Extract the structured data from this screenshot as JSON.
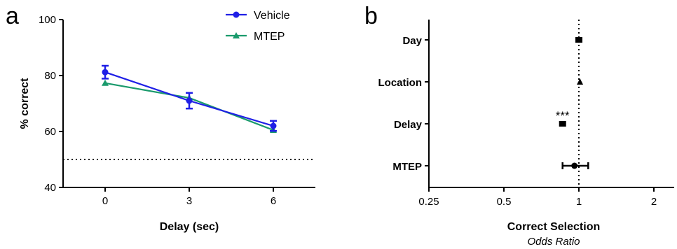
{
  "chart_data": [
    {
      "type": "line",
      "panel": "a",
      "xlabel": "Delay (sec)",
      "ylabel": "% correct",
      "x": [
        0,
        3,
        6
      ],
      "xticks": [
        "0",
        "3",
        "6"
      ],
      "ylim": [
        40,
        100
      ],
      "yticks": [
        "40",
        "60",
        "80",
        "100"
      ],
      "reference_line": 50,
      "series": [
        {
          "name": "Vehicle",
          "color": "#1f1fe6",
          "marker": "circle",
          "values": [
            81.2,
            71.0,
            62.0
          ],
          "errors": [
            2.3,
            2.8,
            1.8
          ]
        },
        {
          "name": "MTEP",
          "color": "#1a9a6c",
          "marker": "triangle",
          "values": [
            77.3,
            72.0,
            60.5
          ],
          "errors": [
            0,
            0,
            0
          ]
        }
      ],
      "legend": "top-right"
    },
    {
      "type": "scatter",
      "panel": "b",
      "xlabel": "Correct Selection",
      "xsublabel": "Odds  Ratio",
      "xscale": "log2",
      "xlim": [
        0.25,
        2.5
      ],
      "xticks": [
        "0.25",
        "0.5",
        "1",
        "2"
      ],
      "xtick_values": [
        0.25,
        0.5,
        1,
        2
      ],
      "reference_line": 1,
      "categories": [
        "Day",
        "Location",
        "Delay",
        "MTEP"
      ],
      "points": [
        {
          "label": "Day",
          "value": 1.0,
          "ci": [
            1.0,
            1.0
          ],
          "marker": "square",
          "annotation": ""
        },
        {
          "label": "Location",
          "value": 1.01,
          "ci": [
            1.01,
            1.01
          ],
          "marker": "triangle",
          "annotation": ""
        },
        {
          "label": "Delay",
          "value": 0.86,
          "ci": [
            0.86,
            0.86
          ],
          "marker": "square",
          "annotation": "***"
        },
        {
          "label": "MTEP",
          "value": 0.96,
          "ci": [
            0.86,
            1.09
          ],
          "marker": "circle",
          "annotation": ""
        }
      ]
    }
  ]
}
